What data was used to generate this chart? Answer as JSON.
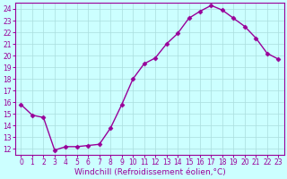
{
  "x": [
    0,
    1,
    2,
    3,
    4,
    5,
    6,
    7,
    8,
    9,
    10,
    11,
    12,
    13,
    14,
    15,
    16,
    17,
    18,
    19,
    20,
    21,
    22,
    23
  ],
  "y": [
    15.8,
    14.9,
    14.7,
    11.9,
    12.2,
    12.2,
    12.3,
    12.4,
    13.8,
    15.8,
    18.0,
    19.3,
    19.8,
    21.0,
    21.9,
    23.2,
    23.8,
    24.3,
    23.9,
    23.2,
    22.5,
    21.5,
    20.2,
    19.7
  ],
  "line_color": "#990099",
  "marker": "D",
  "markersize": 2.5,
  "bg_color": "#ccffff",
  "grid_color": "#aadddd",
  "xlabel": "Windchill (Refroidissement éolien,°C)",
  "xlim": [
    -0.5,
    23.5
  ],
  "ylim": [
    11.5,
    24.5
  ],
  "yticks": [
    12,
    13,
    14,
    15,
    16,
    17,
    18,
    19,
    20,
    21,
    22,
    23,
    24
  ],
  "xticks": [
    0,
    1,
    2,
    3,
    4,
    5,
    6,
    7,
    8,
    9,
    10,
    11,
    12,
    13,
    14,
    15,
    16,
    17,
    18,
    19,
    20,
    21,
    22,
    23
  ],
  "tick_color": "#990099",
  "label_color": "#990099",
  "linewidth": 1.0,
  "title_fontsize": 7,
  "xlabel_fontsize": 6.5,
  "tick_fontsize": 5.5
}
